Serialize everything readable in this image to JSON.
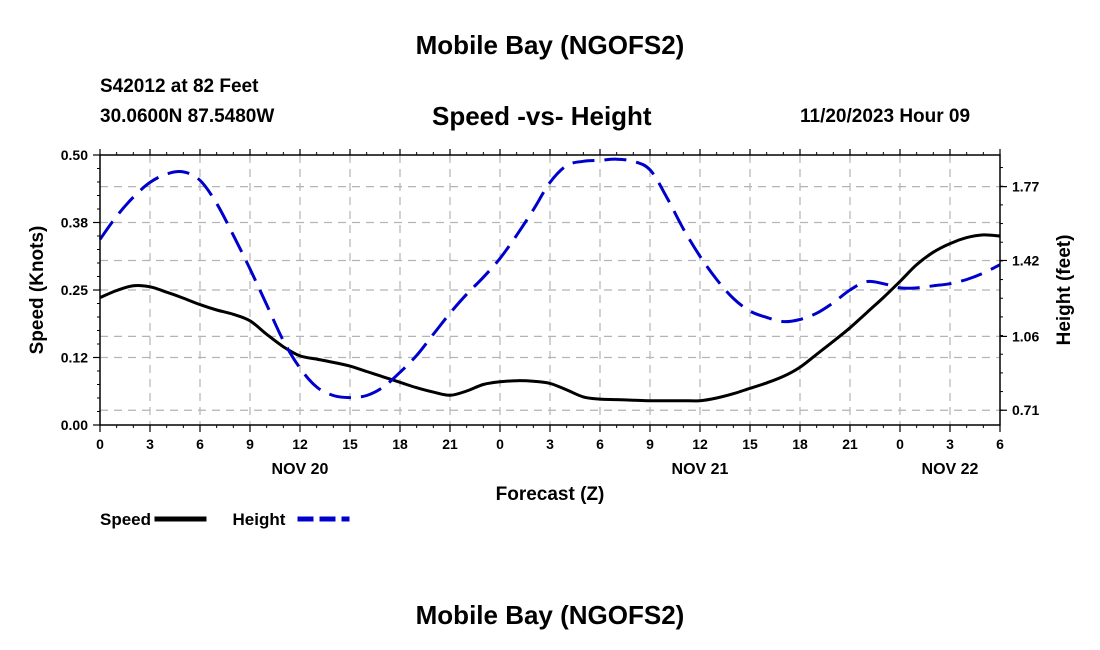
{
  "chart_data": {
    "type": "line",
    "title": "Mobile Bay (NGOFS2)",
    "footer_title": "Mobile Bay (NGOFS2)",
    "subtitle": "Speed -vs- Height",
    "station": "S42012 at 82 Feet",
    "coordinates": "30.0600N  87.5480W",
    "datetime": "11/20/2023 Hour 09",
    "xlabel": "Forecast (Z)",
    "ylabel_left": "Speed (Knots)",
    "ylabel_right": "Height (feet)",
    "x_range": [
      0,
      54
    ],
    "ylim_left": [
      0,
      0.5
    ],
    "ylim_right": [
      0.64,
      1.92
    ],
    "grid": true,
    "legend_position": "bottom-left",
    "x_ticks": [
      {
        "x": 0,
        "label": "0"
      },
      {
        "x": 3,
        "label": "3"
      },
      {
        "x": 6,
        "label": "6"
      },
      {
        "x": 9,
        "label": "9"
      },
      {
        "x": 12,
        "label": "12"
      },
      {
        "x": 15,
        "label": "15"
      },
      {
        "x": 18,
        "label": "18"
      },
      {
        "x": 21,
        "label": "21"
      },
      {
        "x": 24,
        "label": "0"
      },
      {
        "x": 27,
        "label": "3"
      },
      {
        "x": 30,
        "label": "6"
      },
      {
        "x": 33,
        "label": "9"
      },
      {
        "x": 36,
        "label": "12"
      },
      {
        "x": 39,
        "label": "15"
      },
      {
        "x": 42,
        "label": "18"
      },
      {
        "x": 45,
        "label": "21"
      },
      {
        "x": 48,
        "label": "0"
      },
      {
        "x": 51,
        "label": "3"
      },
      {
        "x": 54,
        "label": "6"
      }
    ],
    "day_labels": [
      {
        "x": 12,
        "label": "NOV 20"
      },
      {
        "x": 36,
        "label": "NOV 21"
      },
      {
        "x": 51,
        "label": "NOV 22"
      }
    ],
    "y_ticks_left": [
      {
        "value": 0.0,
        "label": "0.00"
      },
      {
        "value": 0.125,
        "label": "0.12"
      },
      {
        "value": 0.25,
        "label": "0.25"
      },
      {
        "value": 0.375,
        "label": "0.38"
      },
      {
        "value": 0.5,
        "label": "0.50"
      }
    ],
    "y_ticks_right": [
      {
        "value": 0.71,
        "label": "0.71"
      },
      {
        "value": 1.06,
        "label": "1.06"
      },
      {
        "value": 1.42,
        "label": "1.42"
      },
      {
        "value": 1.77,
        "label": "1.77"
      }
    ],
    "series": [
      {
        "name": "Speed",
        "axis": "left",
        "color": "#000000",
        "dash": false,
        "x": [
          0,
          1,
          2,
          3,
          4,
          5,
          6,
          7,
          8,
          9,
          10,
          11,
          12,
          13,
          14,
          15,
          16,
          17,
          18,
          19,
          20,
          21,
          22,
          23,
          24,
          25,
          26,
          27,
          28,
          29,
          30,
          31,
          32,
          33,
          34,
          35,
          36,
          37,
          38,
          39,
          40,
          41,
          42,
          43,
          44,
          45,
          46,
          47,
          48,
          49,
          50,
          51,
          52,
          53,
          54
        ],
        "values": [
          0.236,
          0.249,
          0.258,
          0.256,
          0.246,
          0.235,
          0.223,
          0.213,
          0.205,
          0.193,
          0.168,
          0.145,
          0.128,
          0.122,
          0.116,
          0.109,
          0.099,
          0.089,
          0.079,
          0.069,
          0.061,
          0.055,
          0.063,
          0.075,
          0.08,
          0.082,
          0.081,
          0.077,
          0.065,
          0.052,
          0.048,
          0.047,
          0.046,
          0.045,
          0.045,
          0.045,
          0.045,
          0.05,
          0.058,
          0.068,
          0.078,
          0.09,
          0.107,
          0.131,
          0.155,
          0.18,
          0.208,
          0.236,
          0.266,
          0.297,
          0.32,
          0.336,
          0.347,
          0.352,
          0.35
        ]
      },
      {
        "name": "Height",
        "axis": "right",
        "color": "#0000cc",
        "dash": true,
        "x": [
          0,
          1,
          2,
          3,
          4,
          5,
          6,
          7,
          8,
          9,
          10,
          11,
          12,
          13,
          14,
          15,
          16,
          17,
          18,
          19,
          20,
          21,
          22,
          23,
          24,
          25,
          26,
          27,
          28,
          29,
          30,
          31,
          32,
          33,
          34,
          35,
          36,
          37,
          38,
          39,
          40,
          41,
          42,
          43,
          44,
          45,
          46,
          47,
          48,
          49,
          50,
          51,
          52,
          53,
          54
        ],
        "values": [
          1.52,
          1.63,
          1.72,
          1.79,
          1.83,
          1.84,
          1.8,
          1.69,
          1.54,
          1.38,
          1.21,
          1.04,
          0.91,
          0.82,
          0.78,
          0.77,
          0.78,
          0.82,
          0.89,
          0.97,
          1.07,
          1.17,
          1.26,
          1.34,
          1.43,
          1.54,
          1.66,
          1.79,
          1.87,
          1.89,
          1.895,
          1.9,
          1.89,
          1.85,
          1.72,
          1.57,
          1.44,
          1.33,
          1.24,
          1.18,
          1.15,
          1.13,
          1.14,
          1.17,
          1.22,
          1.28,
          1.32,
          1.31,
          1.29,
          1.29,
          1.3,
          1.31,
          1.33,
          1.36,
          1.4
        ]
      }
    ]
  }
}
